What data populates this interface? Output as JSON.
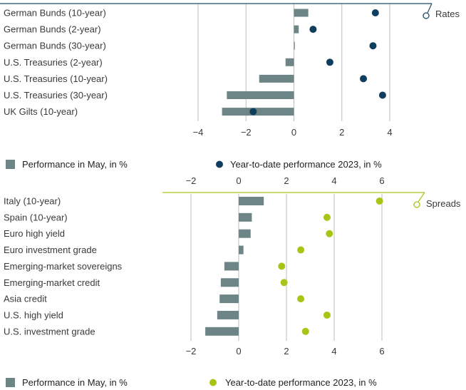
{
  "colors": {
    "bar": "#6e8587",
    "rates_dot": "#0f3d5e",
    "spreads_dot": "#a9c417",
    "rates_line": "#1f4e6b",
    "spreads_line": "#a9c417",
    "grid": "#bdbdbd"
  },
  "chart_data": [
    {
      "type": "bar",
      "panel_label": "Rates",
      "categories": [
        "German Bunds (10-year)",
        "German Bunds (2-year)",
        "German Bunds (30-year)",
        "U.S. Treasuries (2-year)",
        "U.S. Treasuries (10-year)",
        "U.S. Treasuries (30-year)",
        "UK Gilts (10-year)"
      ],
      "series": [
        {
          "name": "Performance in May, in %",
          "kind": "bar",
          "values": [
            0.6,
            0.2,
            0.0,
            -0.35,
            -1.45,
            -2.8,
            -3.0
          ]
        },
        {
          "name": "Year-to-date performance 2023, in %",
          "kind": "dot",
          "values": [
            3.4,
            0.8,
            3.3,
            1.5,
            2.9,
            3.7,
            -1.7
          ]
        }
      ],
      "xlim": [
        -4,
        4
      ],
      "xticks": [
        -4,
        -2,
        0,
        2,
        4
      ],
      "xtick_labels": [
        "−4",
        "−2",
        "0",
        "2",
        "4"
      ],
      "grid": true,
      "legend_position": "bottom"
    },
    {
      "type": "bar",
      "panel_label": "Spreads",
      "categories": [
        "Italy (10-year)",
        "Spain (10-year)",
        "Euro high yield",
        "Euro investment grade",
        "Emerging-market sovereigns",
        "Emerging-market credit",
        "Asia credit",
        "U.S. high yield",
        "U.S. investment grade"
      ],
      "series": [
        {
          "name": "Performance in May, in %",
          "kind": "bar",
          "values": [
            1.05,
            0.55,
            0.5,
            0.2,
            -0.6,
            -0.75,
            -0.8,
            -0.9,
            -1.4
          ]
        },
        {
          "name": "Year-to-date performance 2023, in %",
          "kind": "dot",
          "values": [
            5.9,
            3.7,
            3.8,
            2.6,
            1.8,
            1.9,
            2.6,
            3.7,
            2.8
          ]
        }
      ],
      "xlim": [
        -2,
        6
      ],
      "xticks": [
        -2,
        0,
        2,
        4,
        6
      ],
      "xtick_labels": [
        "−2",
        "0",
        "2",
        "4",
        "6"
      ],
      "grid": true,
      "legend_position": "bottom"
    }
  ]
}
